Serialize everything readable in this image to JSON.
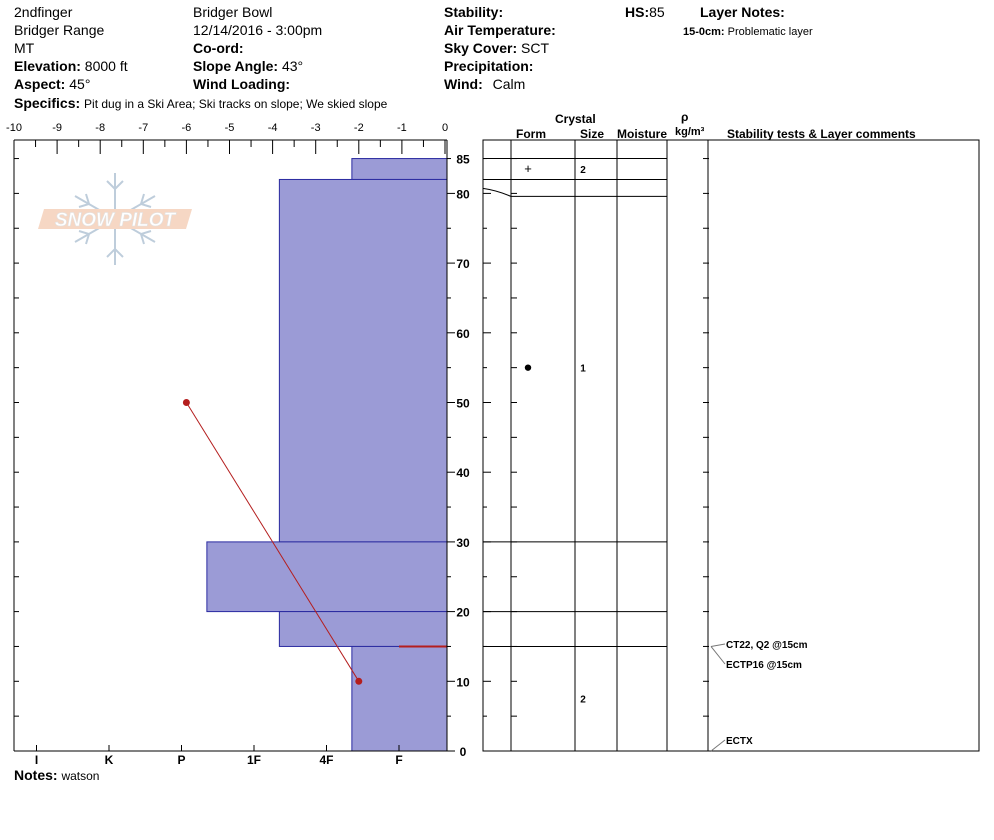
{
  "header": {
    "col1": {
      "name": "2ndfinger",
      "range": "Bridger Range",
      "state": "MT",
      "elevation_label": "Elevation:",
      "elevation": "8000 ft",
      "aspect_label": "Aspect:",
      "aspect": "45°"
    },
    "col2": {
      "location": "Bridger Bowl",
      "datetime": "12/14/2016 - 3:00pm",
      "coord_label": "Co-ord:",
      "slope_label": "Slope Angle:",
      "slope": "43°",
      "wind_loading_label": "Wind Loading:"
    },
    "col3": {
      "stability_label": "Stability:",
      "air_temp_label": "Air Temperature:",
      "sky_label": "Sky Cover:",
      "sky": "SCT",
      "precip_label": "Precipitation:",
      "wind_label": "Wind:",
      "wind": "Calm"
    },
    "hs_label": "HS:",
    "hs": "85",
    "layer_notes_label": "Layer Notes:",
    "layer_note_range": "15-0cm:",
    "layer_note_text": "Problematic layer",
    "specifics_label": "Specifics:",
    "specifics": "Pit dug in a Ski Area; Ski tracks on slope; We skied slope"
  },
  "notes": {
    "label": "Notes:",
    "text": "watson"
  },
  "right_headers": {
    "crystal": "Crystal",
    "form": "Form",
    "size": "Size",
    "moisture": "Moisture",
    "rho": "ρ",
    "density_unit": "kg/m³",
    "stability": "Stability tests & Layer comments"
  },
  "colors": {
    "hardness_fill": "#9b9bd6",
    "hardness_stroke": "#2a2aa0",
    "temp_line": "#b41e1e"
  },
  "chart_data": {
    "type": "snow_profile",
    "depth_axis": {
      "min": 0,
      "max": 85,
      "ticks": [
        0,
        10,
        20,
        30,
        40,
        50,
        60,
        70,
        80,
        85
      ]
    },
    "temp_axis": {
      "min": -10,
      "max": 0,
      "ticks": [
        -10,
        -9,
        -8,
        -7,
        -6,
        -5,
        -4,
        -3,
        -2,
        -1,
        0
      ]
    },
    "hardness_axis": {
      "labels": [
        "I",
        "K",
        "P",
        "1F",
        "4F",
        "F"
      ],
      "values": [
        5,
        4,
        3,
        2,
        1,
        0
      ]
    },
    "hardness_layers": [
      {
        "top": 85,
        "bottom": 82,
        "hardness": 0.65
      },
      {
        "top": 82,
        "bottom": 30,
        "hardness": 1.65
      },
      {
        "top": 30,
        "bottom": 20,
        "hardness": 2.65
      },
      {
        "top": 20,
        "bottom": 15,
        "hardness": 1.65
      },
      {
        "top": 15,
        "bottom": 0,
        "hardness": 0.65
      }
    ],
    "red_layer": 15,
    "temperature_profile": [
      {
        "depth": 50,
        "temp": -6
      },
      {
        "depth": 10,
        "temp": -2
      }
    ],
    "layer_boundaries": [
      85,
      82,
      80,
      30,
      20,
      15
    ],
    "crystal_layers": [
      {
        "depth": 83.5,
        "form": "+",
        "size": "2"
      },
      {
        "depth": 55,
        "form": "●",
        "size": "1"
      },
      {
        "depth": 7.5,
        "form": "",
        "size": "2"
      }
    ],
    "stability_tests": [
      {
        "depth": 15,
        "text": "CT22, Q2 @15cm"
      },
      {
        "depth": 15,
        "text": "ECTP16 @15cm"
      },
      {
        "depth": 0,
        "text": "ECTX"
      }
    ]
  }
}
